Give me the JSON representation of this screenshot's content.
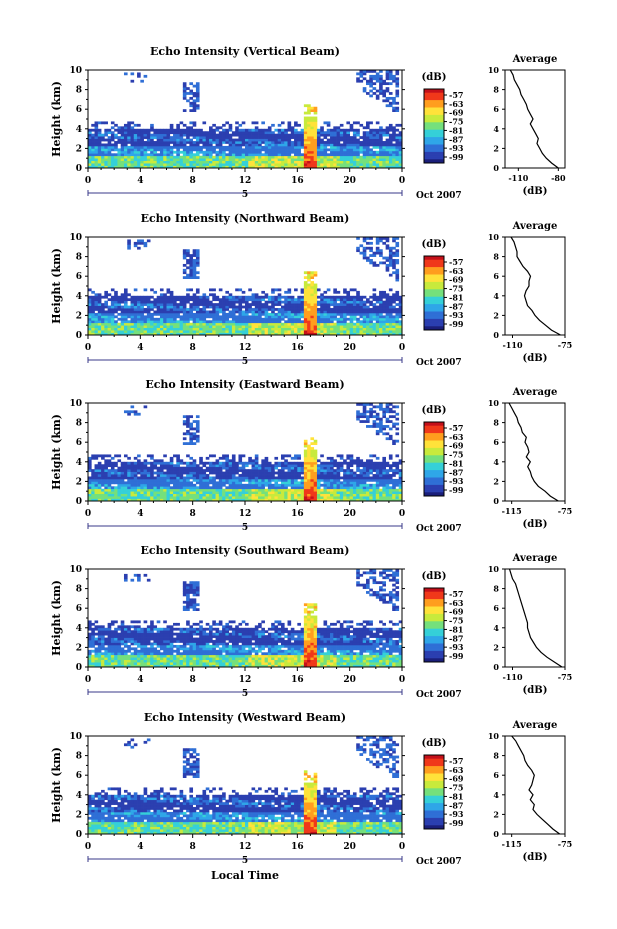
{
  "figure": {
    "xlabel_bottom": "Local Time",
    "date_label": "Oct 2007",
    "colorbar_unit": "(dB)",
    "colorbar_ticks": [
      "-57",
      "-63",
      "-69",
      "-75",
      "-81",
      "-87",
      "-93",
      "-99"
    ],
    "colormap": [
      "#1b1f7a",
      "#2b3fb0",
      "#2f6fd6",
      "#2fa6e8",
      "#35d0d8",
      "#74e07c",
      "#c8ea3c",
      "#ffe23a",
      "#ff9e1e",
      "#f0381a",
      "#c4101a"
    ]
  },
  "chart_data": [
    {
      "type": "heatmap",
      "title": "Echo Intensity (Vertical Beam)",
      "ylabel": "Height (km)",
      "x_ticks": [
        "0",
        "4",
        "8",
        "12",
        "16",
        "20",
        "0"
      ],
      "y_ticks": [
        "0",
        "2",
        "4",
        "6",
        "8",
        "10"
      ],
      "xlim": [
        0,
        24
      ],
      "ylim": [
        0,
        10
      ],
      "day_marker": "5",
      "profile": {
        "title": "Average",
        "xlabel": "(dB)",
        "x_ticks": [
          "-110",
          "-80"
        ],
        "xlim": [
          -120,
          -75
        ],
        "height": [
          0,
          0.5,
          1,
          1.5,
          2,
          2.5,
          3,
          3.5,
          4,
          4.5,
          5,
          5.5,
          6,
          6.5,
          7,
          7.5,
          8,
          8.5,
          9,
          9.5,
          10
        ],
        "db": [
          -80,
          -85,
          -89,
          -92,
          -94,
          -96,
          -95,
          -97,
          -99,
          -101,
          -99,
          -101,
          -103,
          -104,
          -106,
          -108,
          -109,
          -111,
          -113,
          -114,
          -116
        ]
      }
    },
    {
      "type": "heatmap",
      "title": "Echo Intensity (Northward Beam)",
      "ylabel": "Height (km)",
      "x_ticks": [
        "0",
        "4",
        "8",
        "12",
        "16",
        "20",
        "0"
      ],
      "y_ticks": [
        "0",
        "2",
        "4",
        "6",
        "8",
        "10"
      ],
      "xlim": [
        0,
        24
      ],
      "ylim": [
        0,
        10
      ],
      "day_marker": "5",
      "profile": {
        "title": "Average",
        "xlabel": "(dB)",
        "x_ticks": [
          "-110",
          "-75"
        ],
        "xlim": [
          -115,
          -75
        ],
        "height": [
          0,
          0.5,
          1,
          1.5,
          2,
          2.5,
          3,
          3.5,
          4,
          4.5,
          5,
          5.5,
          6,
          6.5,
          7,
          7.5,
          8,
          8.5,
          9,
          9.5,
          10
        ],
        "db": [
          -78,
          -84,
          -88,
          -92,
          -95,
          -97,
          -100,
          -101,
          -102,
          -101,
          -99,
          -99,
          -98,
          -100,
          -103,
          -105,
          -107,
          -107,
          -108,
          -109,
          -111
        ]
      }
    },
    {
      "type": "heatmap",
      "title": "Echo Intensity (Eastward Beam)",
      "ylabel": "Height (km)",
      "x_ticks": [
        "0",
        "4",
        "8",
        "12",
        "16",
        "20",
        "0"
      ],
      "y_ticks": [
        "0",
        "2",
        "4",
        "6",
        "8",
        "10"
      ],
      "xlim": [
        0,
        24
      ],
      "ylim": [
        0,
        10
      ],
      "day_marker": "5",
      "profile": {
        "title": "Average",
        "xlabel": "(dB)",
        "x_ticks": [
          "-115",
          "-75"
        ],
        "xlim": [
          -120,
          -75
        ],
        "height": [
          0,
          0.5,
          1,
          1.5,
          2,
          2.5,
          3,
          3.5,
          4,
          4.5,
          5,
          5.5,
          6,
          6.5,
          7,
          7.5,
          8,
          8.5,
          9,
          9.5,
          10
        ],
        "db": [
          -80,
          -86,
          -90,
          -95,
          -98,
          -100,
          -101,
          -103,
          -101,
          -104,
          -102,
          -103,
          -105,
          -104,
          -107,
          -108,
          -110,
          -111,
          -113,
          -115,
          -117
        ]
      }
    },
    {
      "type": "heatmap",
      "title": "Echo Intensity (Southward Beam)",
      "ylabel": "Height (km)",
      "x_ticks": [
        "0",
        "4",
        "8",
        "12",
        "16",
        "20",
        "0"
      ],
      "y_ticks": [
        "0",
        "2",
        "4",
        "6",
        "8",
        "10"
      ],
      "xlim": [
        0,
        24
      ],
      "ylim": [
        0,
        10
      ],
      "day_marker": "5",
      "profile": {
        "title": "Average",
        "xlabel": "(dB)",
        "x_ticks": [
          "-110",
          "-75"
        ],
        "xlim": [
          -115,
          -75
        ],
        "height": [
          0,
          0.5,
          1,
          1.5,
          2,
          2.5,
          3,
          3.5,
          4,
          4.5,
          5,
          5.5,
          6,
          6.5,
          7,
          7.5,
          8,
          8.5,
          9,
          9.5,
          10
        ],
        "db": [
          -77,
          -82,
          -87,
          -91,
          -94,
          -96,
          -98,
          -99,
          -100,
          -100,
          -101,
          -102,
          -103,
          -104,
          -105,
          -106,
          -107,
          -108,
          -110,
          -111,
          -112
        ]
      }
    },
    {
      "type": "heatmap",
      "title": "Echo Intensity (Westward Beam)",
      "ylabel": "Height (km)",
      "x_ticks": [
        "0",
        "4",
        "8",
        "12",
        "16",
        "20",
        "0"
      ],
      "y_ticks": [
        "0",
        "2",
        "4",
        "6",
        "8",
        "10"
      ],
      "xlim": [
        0,
        24
      ],
      "ylim": [
        0,
        10
      ],
      "day_marker": "5",
      "profile": {
        "title": "Average",
        "xlabel": "(dB)",
        "x_ticks": [
          "-115",
          "-75"
        ],
        "xlim": [
          -120,
          -75
        ],
        "height": [
          0,
          0.5,
          1,
          1.5,
          2,
          2.5,
          3,
          3.5,
          4,
          4.5,
          5,
          5.5,
          6,
          6.5,
          7,
          7.5,
          8,
          8.5,
          9,
          9.5,
          10
        ],
        "db": [
          -79,
          -84,
          -88,
          -92,
          -96,
          -99,
          -98,
          -101,
          -99,
          -102,
          -100,
          -99,
          -98,
          -100,
          -103,
          -105,
          -106,
          -108,
          -110,
          -112,
          -115
        ]
      }
    }
  ]
}
